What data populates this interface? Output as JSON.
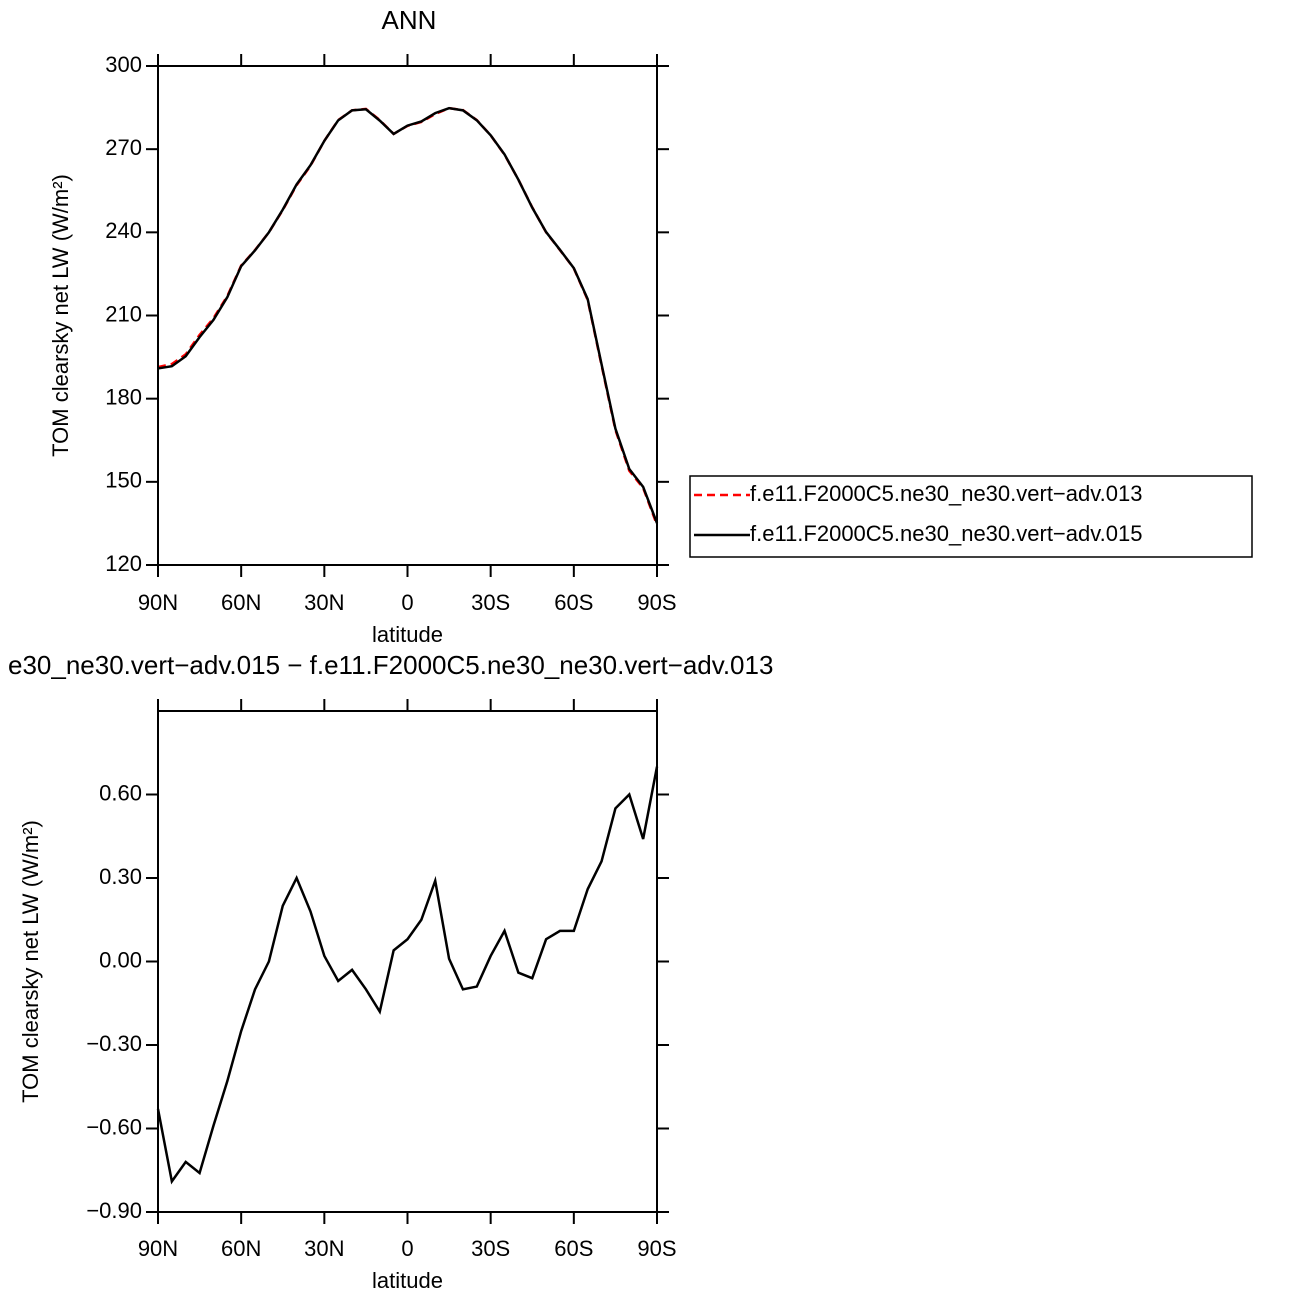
{
  "chart_data": [
    {
      "type": "line",
      "title": "ANN",
      "x_label": "latitude",
      "y_label": "TOM clearsky net LW (W/m²)",
      "x": [
        90,
        85,
        80,
        75,
        70,
        65,
        60,
        55,
        50,
        45,
        40,
        35,
        30,
        25,
        20,
        15,
        10,
        5,
        0,
        -5,
        -10,
        -15,
        -20,
        -25,
        -30,
        -35,
        -40,
        -45,
        -50,
        -55,
        -60,
        -65,
        -70,
        -75,
        -80,
        -85,
        -90
      ],
      "series": [
        {
          "name": "f.e11.F2000C5.ne30_ne30.vert−adv.013",
          "color": "#ff0000",
          "dashed": true,
          "values": [
            191.4,
            192.5,
            196,
            203,
            209,
            217,
            228,
            233.6,
            240,
            248,
            257,
            264,
            273,
            280.5,
            284,
            284.5,
            280.5,
            275.5,
            278.4,
            279.8,
            282.7,
            284.8,
            284.1,
            280.5,
            275,
            268,
            259,
            249,
            240,
            233.6,
            227,
            215.6,
            192,
            168.7,
            154,
            147.8,
            134.4
          ]
        },
        {
          "name": "f.e11.F2000C5.ne30_ne30.vert−adv.015",
          "color": "#000000",
          "dashed": false,
          "values": [
            190.9,
            191.7,
            195.3,
            202.2,
            208.4,
            216.6,
            227.8,
            233.5,
            240,
            248.2,
            257.3,
            264.2,
            273,
            280.4,
            284,
            284.4,
            280.3,
            275.5,
            278.5,
            280,
            283,
            284.8,
            284,
            280.4,
            275,
            268.1,
            259,
            248.9,
            240.1,
            233.7,
            227.1,
            215.9,
            192.4,
            169.2,
            154.6,
            148.2,
            135.1
          ]
        }
      ],
      "xlim": [
        90,
        -90
      ],
      "xticks": [
        {
          "value": 90,
          "label": "90N"
        },
        {
          "value": 60,
          "label": "60N"
        },
        {
          "value": 30,
          "label": "30N"
        },
        0,
        {
          "value": -30,
          "label": "30S"
        },
        {
          "value": -60,
          "label": "60S"
        },
        {
          "value": -90,
          "label": "90S"
        }
      ],
      "ylim": [
        120,
        300
      ],
      "yticks": [
        120,
        150,
        180,
        210,
        240,
        270,
        300
      ],
      "legend": "right"
    },
    {
      "type": "line",
      "title": "e30_ne30.vert−adv.015 − f.e11.F2000C5.ne30_ne30.vert−adv.013",
      "x_label": "latitude",
      "y_label": "TOM clearsky net LW (W/m²)",
      "x": [
        90,
        85,
        80,
        75,
        70,
        65,
        60,
        55,
        50,
        45,
        40,
        35,
        30,
        25,
        20,
        15,
        10,
        5,
        0,
        -5,
        -10,
        -15,
        -20,
        -25,
        -30,
        -35,
        -40,
        -45,
        -50,
        -55,
        -60,
        -65,
        -70,
        -75,
        -80,
        -85,
        -90
      ],
      "color": "#000000",
      "values": [
        -0.53,
        -0.79,
        -0.72,
        -0.76,
        -0.59,
        -0.43,
        -0.25,
        -0.1,
        0,
        0.2,
        0.3,
        0.18,
        0.02,
        -0.07,
        -0.03,
        -0.1,
        -0.18,
        0.04,
        0.08,
        0.15,
        0.29,
        0.01,
        -0.1,
        -0.09,
        0.02,
        0.11,
        -0.04,
        -0.06,
        0.08,
        0.11,
        0.11,
        0.26,
        0.36,
        0.55,
        0.6,
        0.44,
        0.7
      ],
      "xlim": [
        90,
        -90
      ],
      "xticks": [
        {
          "value": 90,
          "label": "90N"
        },
        {
          "value": 60,
          "label": "60N"
        },
        {
          "value": 30,
          "label": "30N"
        },
        0,
        {
          "value": -30,
          "label": "30S"
        },
        {
          "value": -60,
          "label": "60S"
        },
        {
          "value": -90,
          "label": "90S"
        }
      ],
      "ylim": [
        -0.9,
        0.9
      ],
      "yticks": [
        {
          "value": -0.9,
          "label": "−0.90"
        },
        {
          "value": -0.6,
          "label": "−0.60"
        },
        {
          "value": -0.3,
          "label": "−0.30"
        },
        {
          "value": 0,
          "label": "0.00"
        },
        {
          "value": 0.3,
          "label": "0.30"
        },
        {
          "value": 0.6,
          "label": "0.60"
        }
      ]
    }
  ]
}
